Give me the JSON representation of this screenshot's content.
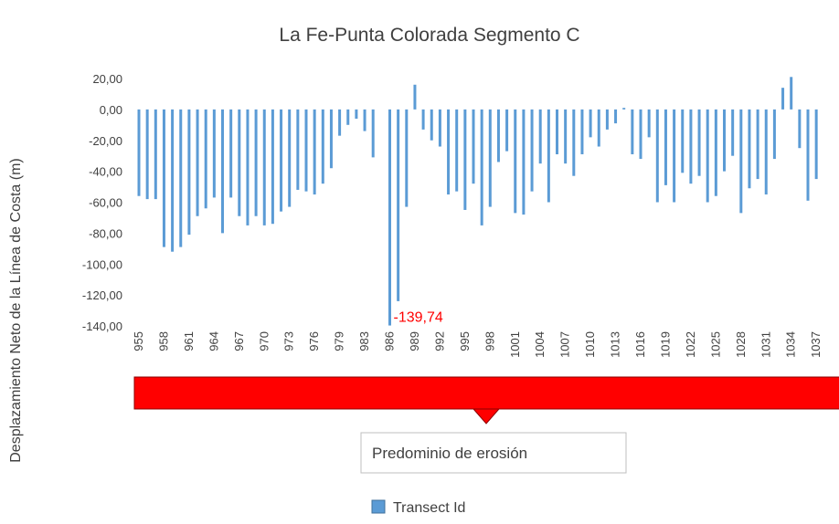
{
  "chart_data": {
    "type": "bar",
    "title": "La Fe-Punta Colorada Segmento C",
    "y_label": "Desplazamiento Neto de la Línea de Costa (m)",
    "annotation": "Predominio de erosión",
    "categories": [
      "955",
      null,
      null,
      "958",
      null,
      null,
      "961",
      null,
      null,
      "964",
      null,
      null,
      "967",
      null,
      null,
      "970",
      null,
      null,
      "973",
      null,
      null,
      "976",
      null,
      null,
      "979",
      null,
      null,
      "983",
      null,
      null,
      "986",
      null,
      null,
      "989",
      null,
      null,
      "992",
      null,
      null,
      "995",
      null,
      null,
      "998",
      null,
      null,
      "1001",
      null,
      null,
      "1004",
      null,
      null,
      "1007",
      null,
      null,
      "1010",
      null,
      null,
      "1013",
      null,
      null,
      "1016",
      null,
      null,
      "1019",
      null,
      null,
      "1022",
      null,
      null,
      "1025",
      null,
      null,
      "1028",
      null,
      null,
      "1031",
      null,
      null,
      "1034",
      null,
      null,
      "1037"
    ],
    "series": [
      {
        "name": "Transect Id",
        "color": "#5b9bd5",
        "values": [
          -56,
          -58,
          -58,
          -89,
          -92,
          -89,
          -81,
          -69,
          -64,
          -57,
          -80,
          -57,
          -69,
          -75,
          -69,
          -75,
          -74,
          -66,
          -63,
          -52,
          -53,
          -55,
          -48,
          -38,
          -17,
          -10,
          -6,
          -14,
          -31,
          0,
          -139.74,
          -124,
          -63,
          16,
          -13,
          -20,
          -24,
          -55,
          -53,
          -65,
          -48,
          -75,
          -63,
          -34,
          -27,
          -67,
          -68,
          -53,
          -35,
          -60,
          -29,
          -35,
          -43,
          -29,
          -18,
          -24,
          -13,
          -9,
          1,
          -29,
          -32,
          -18,
          -60,
          -49,
          -60,
          -41,
          -48,
          -43,
          -60,
          -56,
          -40,
          -30,
          -67,
          -51,
          -45,
          -55,
          -32,
          14,
          21,
          -25,
          -59,
          -45
        ],
        "value_labels": [
          null,
          null,
          null,
          null,
          null,
          null,
          null,
          null,
          null,
          null,
          null,
          null,
          null,
          null,
          null,
          null,
          null,
          null,
          null,
          null,
          null,
          null,
          null,
          null,
          null,
          null,
          null,
          null,
          null,
          null,
          "-139,74",
          null,
          null,
          null,
          null,
          null,
          null,
          null,
          null,
          null,
          null,
          null,
          null,
          null,
          null,
          null,
          null,
          null,
          null,
          null,
          null,
          null,
          null,
          null,
          null,
          null,
          null,
          null,
          null,
          null,
          null,
          null,
          null,
          null,
          null,
          null,
          null,
          null,
          null,
          null,
          null,
          null,
          null,
          null,
          null,
          null,
          null,
          null,
          null,
          null,
          null,
          null
        ],
        "value_label_color": "#ff0000"
      }
    ],
    "ylim": [
      -140,
      20
    ],
    "yticks": [
      {
        "value": 20,
        "label": "20,00"
      },
      {
        "value": 0,
        "label": "0,00"
      },
      {
        "value": -20,
        "label": "-20,00"
      },
      {
        "value": -40,
        "label": "-40,00"
      },
      {
        "value": -60,
        "label": "-60,00"
      },
      {
        "value": -80,
        "label": "-80,00"
      },
      {
        "value": -100,
        "label": "-100,00"
      },
      {
        "value": -120,
        "label": "-120,00"
      },
      {
        "value": -140,
        "label": "-140,00"
      }
    ],
    "grid": false
  }
}
